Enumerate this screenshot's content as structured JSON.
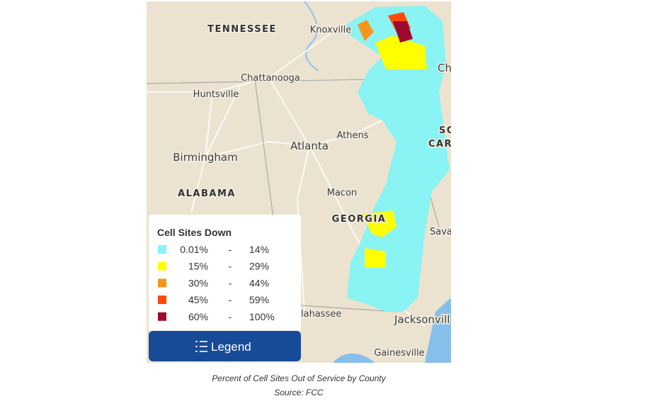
{
  "map": {
    "labels": [
      "TENNESSEE",
      "Knoxville",
      "Chattanooga",
      "Huntsville",
      "Birmingham",
      "Atlanta",
      "Athens",
      "ALABAMA",
      "Macon",
      "GEORGIA",
      "Sava",
      "Jacksonvill",
      "Gainesville",
      "lahassee",
      "Ch",
      "SO",
      "CAR"
    ]
  },
  "legend": {
    "title": "Cell Sites Down",
    "separator": "-",
    "items": [
      {
        "low": "0.01%",
        "high": "14%",
        "color": "#8af3f3"
      },
      {
        "low": "15%",
        "high": "29%",
        "color": "#ffff00"
      },
      {
        "low": "30%",
        "high": "44%",
        "color": "#f7941d"
      },
      {
        "low": "45%",
        "high": "59%",
        "color": "#ff4a0a"
      },
      {
        "low": "60%",
        "high": "100%",
        "color": "#9e0a2c"
      }
    ]
  },
  "button": {
    "label": "Legend"
  },
  "caption": {
    "lines": [
      "Percent of Cell Sites Out of Service by County",
      "Source: FCC"
    ]
  }
}
